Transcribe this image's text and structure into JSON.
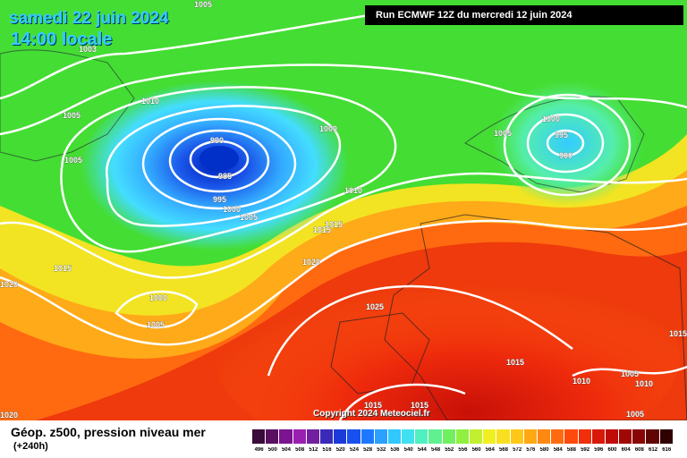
{
  "header": {
    "date": "samedi 22 juin 2024",
    "time": "14:00 locale",
    "run": "Run ECMWF 12Z du mercredi 12 juin 2024"
  },
  "map": {
    "pressure_labels": [
      "1005",
      "1003",
      "1010",
      "1005",
      "1005",
      "990",
      "985",
      "995",
      "1000",
      "1005",
      "1000",
      "1010",
      "1015",
      "1015",
      "1020",
      "1015",
      "1000",
      "1005",
      "1025",
      "1005",
      "1000",
      "995",
      "990",
      "1015",
      "1010",
      "1005",
      "1005",
      "1015",
      "1020",
      "1015",
      "1020",
      "1010",
      "1015"
    ],
    "colors": {
      "low_center": "#0033cc",
      "cyan": "#33ddff",
      "green": "#44dd33",
      "yellow": "#f0e020",
      "orange": "#ff7a10",
      "red": "#e8200a"
    }
  },
  "copyright": "Copyright 2024 Meteociel.fr",
  "legend": {
    "title": "Géop. z500, pression niveau mer",
    "subtitle": "(+240h)",
    "ticks": [
      "496",
      "500",
      "504",
      "508",
      "512",
      "516",
      "520",
      "524",
      "528",
      "532",
      "536",
      "540",
      "544",
      "548",
      "552",
      "556",
      "560",
      "564",
      "568",
      "572",
      "576",
      "580",
      "584",
      "588",
      "592",
      "596",
      "600",
      "604",
      "608",
      "612",
      "616"
    ],
    "colors": [
      "#3a0a3a",
      "#5a1060",
      "#7a1490",
      "#9a20b0",
      "#7020a0",
      "#3a2ab8",
      "#1c3ad8",
      "#1850f0",
      "#1e78ff",
      "#2aa0ff",
      "#30c8ff",
      "#40e0f0",
      "#50f0c0",
      "#60f090",
      "#70f060",
      "#90f040",
      "#c0f030",
      "#f0f020",
      "#f8e020",
      "#ffc818",
      "#ffa814",
      "#ff8810",
      "#ff6a10",
      "#ff4a0e",
      "#f0300a",
      "#d81a0a",
      "#c00c08",
      "#a00806",
      "#880606",
      "#600404",
      "#300202"
    ]
  }
}
